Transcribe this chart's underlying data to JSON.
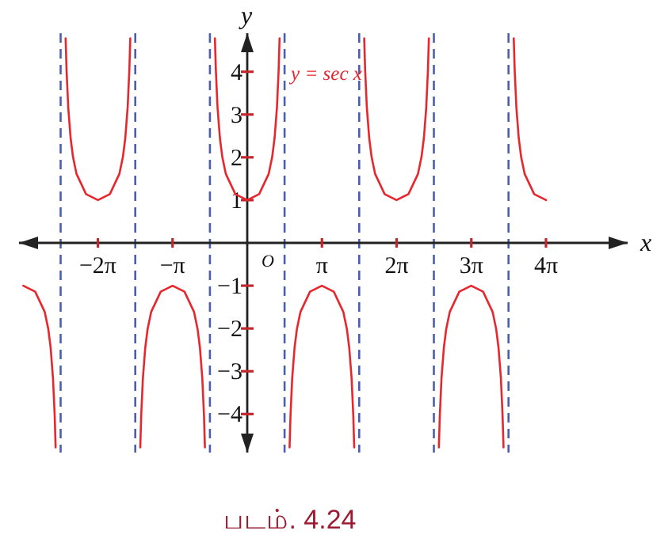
{
  "chart_data": {
    "type": "line",
    "xlabel": "x",
    "ylabel": "y",
    "xlim": [
      -9.6,
      16.0
    ],
    "ylim": [
      -4.9,
      4.9
    ],
    "xticks": [
      {
        "value": -6.283,
        "label": "−2π"
      },
      {
        "value": -3.142,
        "label": "−π"
      },
      {
        "value": 3.142,
        "label": "π"
      },
      {
        "value": 6.283,
        "label": "2π"
      },
      {
        "value": 9.425,
        "label": "3π"
      },
      {
        "value": 12.566,
        "label": "4π"
      }
    ],
    "yticks": [
      {
        "value": -4,
        "label": "−4"
      },
      {
        "value": -3,
        "label": "−3"
      },
      {
        "value": -2,
        "label": "−2"
      },
      {
        "value": -1,
        "label": "−1"
      },
      1,
      2,
      3,
      4
    ],
    "grid": false,
    "line_style": "solid",
    "series": [
      {
        "color": "#e8262d",
        "x": [
          -9.42,
          -8.92,
          -8.52,
          -8.37,
          -8.27,
          -8.17,
          -8.1,
          -8.06
        ],
        "values": [
          -1,
          -1.14,
          -1.61,
          -2.01,
          -2.45,
          -3.17,
          -4.03,
          -4.78
        ]
      },
      {
        "color": "#e8262d",
        "x": [
          -7.64,
          -7.6,
          -7.53,
          -7.43,
          -7.33,
          -7.18,
          -6.78,
          -6.28,
          -5.78,
          -5.38,
          -5.23,
          -5.13,
          -5.03,
          -4.96,
          -4.92
        ],
        "values": [
          4.78,
          4.03,
          3.17,
          2.45,
          2.01,
          1.61,
          1.14,
          1,
          1.14,
          1.61,
          2.01,
          2.45,
          3.17,
          4.03,
          4.78
        ]
      },
      {
        "color": "#e8262d",
        "x": [
          -4.5,
          -4.46,
          -4.39,
          -4.29,
          -4.19,
          -4.04,
          -3.64,
          -3.14,
          -2.64,
          -2.24,
          -2.09,
          -1.99,
          -1.89,
          -1.82,
          -1.78
        ],
        "values": [
          -4.78,
          -4.03,
          -3.17,
          -2.45,
          -2.01,
          -1.61,
          -1.14,
          -1,
          -1.14,
          -1.61,
          -2.01,
          -2.45,
          -3.17,
          -4.03,
          -4.78
        ]
      },
      {
        "name": "y = sec x",
        "color": "#e8262d",
        "x": [
          -1.36,
          -1.32,
          -1.25,
          -1.15,
          -1.05,
          -0.9,
          -0.5,
          0,
          0.5,
          0.9,
          1.05,
          1.15,
          1.25,
          1.32,
          1.36
        ],
        "values": [
          4.78,
          4.03,
          3.17,
          2.45,
          2.01,
          1.61,
          1.14,
          1,
          1.14,
          1.61,
          2.01,
          2.45,
          3.17,
          4.03,
          4.78
        ]
      },
      {
        "color": "#e8262d",
        "x": [
          1.78,
          1.82,
          1.89,
          1.99,
          2.09,
          2.24,
          2.64,
          3.14,
          3.64,
          4.04,
          4.19,
          4.29,
          4.39,
          4.46,
          4.5
        ],
        "values": [
          -4.78,
          -4.03,
          -3.17,
          -2.45,
          -2.01,
          -1.61,
          -1.14,
          -1,
          -1.14,
          -1.61,
          -2.01,
          -2.45,
          -3.17,
          -4.03,
          -4.78
        ]
      },
      {
        "color": "#e8262d",
        "x": [
          4.92,
          4.96,
          5.03,
          5.13,
          5.23,
          5.38,
          5.78,
          6.28,
          6.78,
          7.18,
          7.33,
          7.43,
          7.53,
          7.6,
          7.64
        ],
        "values": [
          4.78,
          4.03,
          3.17,
          2.45,
          2.01,
          1.61,
          1.14,
          1,
          1.14,
          1.61,
          2.01,
          2.45,
          3.17,
          4.03,
          4.78
        ]
      },
      {
        "color": "#e8262d",
        "x": [
          8.06,
          8.1,
          8.17,
          8.27,
          8.37,
          8.52,
          8.92,
          9.42,
          9.92,
          10.32,
          10.47,
          10.57,
          10.67,
          10.74,
          10.78
        ],
        "values": [
          -4.78,
          -4.03,
          -3.17,
          -2.45,
          -2.01,
          -1.61,
          -1.14,
          -1,
          -1.14,
          -1.61,
          -2.01,
          -2.45,
          -3.17,
          -4.03,
          -4.78
        ]
      },
      {
        "color": "#e8262d",
        "x": [
          11.21,
          11.25,
          11.32,
          11.42,
          11.52,
          11.67,
          12.07,
          12.57
        ],
        "values": [
          4.78,
          4.03,
          3.17,
          2.45,
          2.01,
          1.61,
          1.14,
          1
        ]
      }
    ],
    "ref_lines": [
      {
        "axis": "x",
        "value": -7.85,
        "color": "#4a5fb0",
        "line_style": "dashed"
      },
      {
        "axis": "x",
        "value": -4.71,
        "color": "#4a5fb0",
        "line_style": "dashed"
      },
      {
        "axis": "x",
        "value": -1.57,
        "color": "#4a5fb0",
        "line_style": "dashed"
      },
      {
        "axis": "x",
        "value": 1.57,
        "color": "#4a5fb0",
        "line_style": "dashed"
      },
      {
        "axis": "x",
        "value": 4.71,
        "color": "#4a5fb0",
        "line_style": "dashed"
      },
      {
        "axis": "x",
        "value": 7.85,
        "color": "#4a5fb0",
        "line_style": "dashed"
      },
      {
        "axis": "x",
        "value": 10.99,
        "color": "#4a5fb0",
        "line_style": "dashed"
      }
    ],
    "annotations": [
      "O",
      "படம். 4.24"
    ]
  }
}
